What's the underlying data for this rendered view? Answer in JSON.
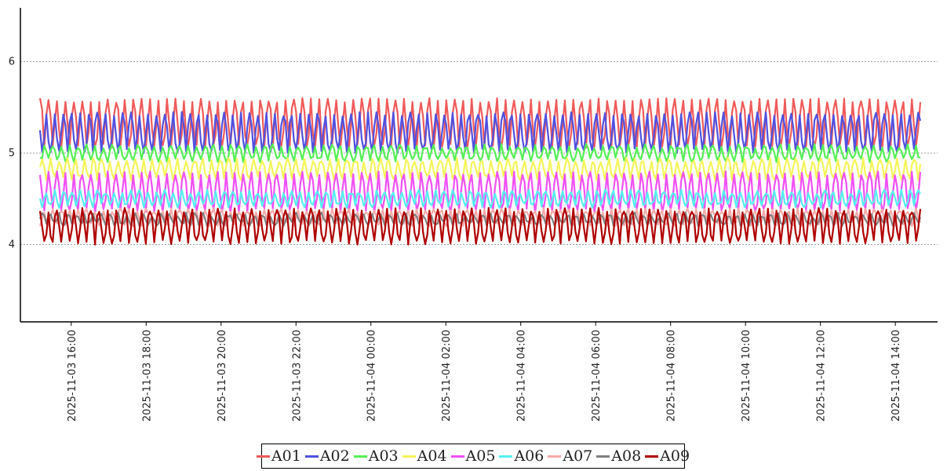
{
  "chart_data": {
    "type": "line",
    "title": "",
    "xlabel": "",
    "ylabel": "",
    "x_range": [
      "2025-11-03 15:10",
      "2025-11-04 14:40"
    ],
    "ylim": [
      3.15,
      6.6
    ],
    "y_ticks": [
      4,
      5,
      6
    ],
    "x_ticks": [
      "2025-11-03 16:00",
      "2025-11-03 18:00",
      "2025-11-03 20:00",
      "2025-11-03 22:00",
      "2025-11-04 00:00",
      "2025-11-04 02:00",
      "2025-11-04 04:00",
      "2025-11-04 06:00",
      "2025-11-04 08:00",
      "2025-11-04 10:00",
      "2025-11-04 12:00",
      "2025-11-04 14:00"
    ],
    "grid": "horizontal-dotted",
    "legend_position": "bottom-center",
    "sampling": "oscillating, ~100 cycles",
    "series": [
      {
        "name": "A01",
        "color": "#f05a5a",
        "min": 5.05,
        "max": 5.6
      },
      {
        "name": "A02",
        "color": "#5050e0",
        "min": 5.0,
        "max": 5.45
      },
      {
        "name": "A03",
        "color": "#55f055",
        "min": 4.9,
        "max": 5.1
      },
      {
        "name": "A04",
        "color": "#f5f55a",
        "min": 4.7,
        "max": 4.95
      },
      {
        "name": "A05",
        "color": "#f050f5",
        "min": 4.35,
        "max": 4.8
      },
      {
        "name": "A06",
        "color": "#55f0f0",
        "min": 4.4,
        "max": 4.6
      },
      {
        "name": "A07",
        "color": "#f5aaaa",
        "min": 4.2,
        "max": 4.4
      },
      {
        "name": "A08",
        "color": "#808080",
        "min": 4.2,
        "max": 4.35
      },
      {
        "name": "A09",
        "color": "#b00000",
        "min": 4.0,
        "max": 4.4
      }
    ]
  }
}
